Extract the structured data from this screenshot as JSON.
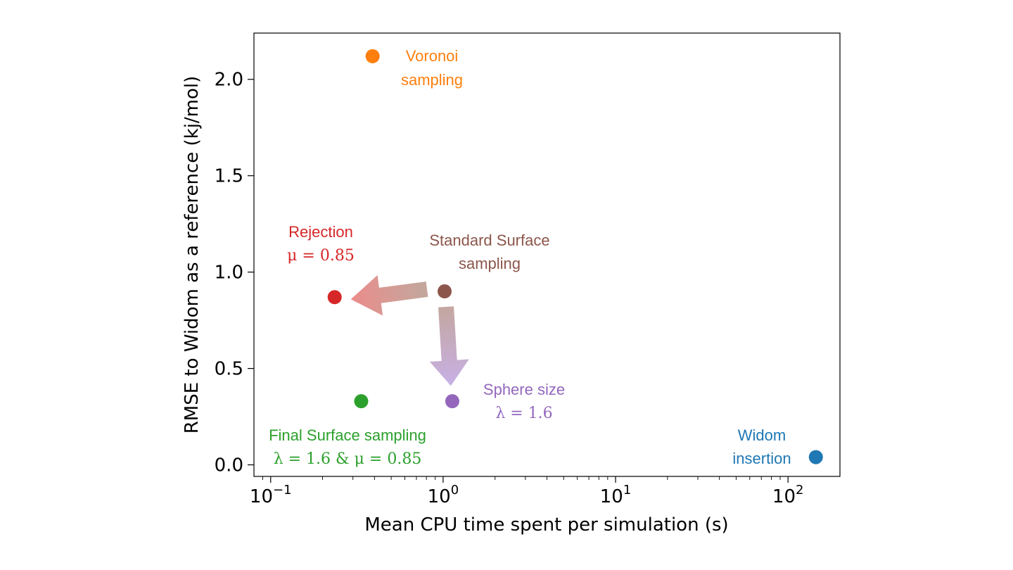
{
  "chart_data": {
    "type": "scatter",
    "xscale": "log",
    "xlim": [
      0.08,
      200
    ],
    "ylim": [
      -0.06,
      2.24
    ],
    "xlabel": "Mean CPU time spent per simulation (s)",
    "ylabel": "RMSE to Widom as a reference (kj/mol)",
    "x_ticks": [
      {
        "value": 0.1,
        "base": "10",
        "exp": "−1"
      },
      {
        "value": 1,
        "base": "10",
        "exp": "0"
      },
      {
        "value": 10,
        "base": "10",
        "exp": "1"
      },
      {
        "value": 100,
        "base": "10",
        "exp": "2"
      }
    ],
    "y_ticks": [
      {
        "value": 0.0,
        "label": "0.0"
      },
      {
        "value": 0.5,
        "label": "0.5"
      },
      {
        "value": 1.0,
        "label": "1.0"
      },
      {
        "value": 1.5,
        "label": "1.5"
      },
      {
        "value": 2.0,
        "label": "2.0"
      }
    ],
    "points": [
      {
        "name": "voronoi",
        "x": 0.39,
        "y": 2.12,
        "color": "#ff7f0e",
        "label_lines": [
          "Voronoi",
          "sampling"
        ]
      },
      {
        "name": "standard-surface",
        "x": 1.02,
        "y": 0.9,
        "color": "#8c564b",
        "label_lines": [
          "Standard Surface",
          "sampling"
        ]
      },
      {
        "name": "rejection",
        "x": 0.235,
        "y": 0.87,
        "color": "#d62728",
        "label_lines": [
          "Rejection",
          "μ = 0.85"
        ]
      },
      {
        "name": "final-surface",
        "x": 0.335,
        "y": 0.33,
        "color": "#2ca02c",
        "label_lines": [
          "Final Surface sampling",
          "λ = 1.6 & μ = 0.85"
        ]
      },
      {
        "name": "sphere-size",
        "x": 1.13,
        "y": 0.33,
        "color": "#9467bd",
        "label_lines": [
          "Sphere size",
          "λ = 1.6"
        ]
      },
      {
        "name": "widom",
        "x": 145,
        "y": 0.04,
        "color": "#1f77b4",
        "label_lines": [
          "Widom",
          "insertion"
        ]
      }
    ],
    "arrows": [
      {
        "name": "standard-to-rejection",
        "from": "standard-surface",
        "to": "rejection",
        "from_color": "#c4a69c",
        "to_color": "#ee8a8a"
      },
      {
        "name": "standard-to-sphere",
        "from": "standard-surface",
        "to": "sphere-size",
        "from_color": "#c4a69c",
        "to_color": "#c7b0e3"
      }
    ],
    "grid": false,
    "legend": "none"
  }
}
